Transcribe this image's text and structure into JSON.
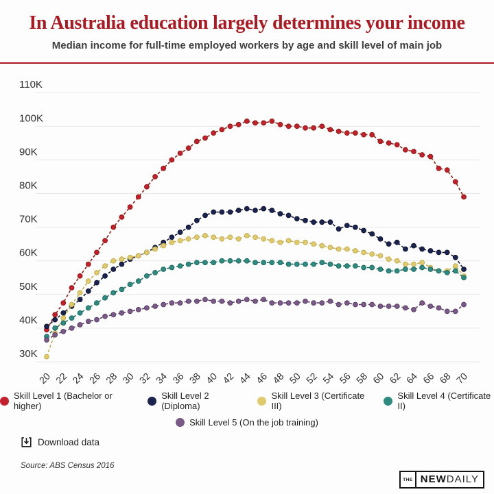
{
  "header": {
    "title": "In Australia education largely determines your income",
    "subtitle": "Median income for full-time employed workers by age and skill level of main job"
  },
  "chart_data": {
    "type": "line",
    "title": "In Australia education largely determines your income",
    "subtitle": "Median income for full-time employed workers by age and skill level of main job",
    "xlabel": "",
    "ylabel": "",
    "unit": "thousands of dollars per year (K)",
    "ylim": [
      30,
      110
    ],
    "grid": "horizontal",
    "legend_position": "bottom",
    "y_ticks": [
      "30K",
      "40K",
      "50K",
      "60K",
      "70K",
      "80K",
      "90K",
      "100K",
      "110K"
    ],
    "x_tick_labels": [
      "20",
      "22",
      "24",
      "26",
      "28",
      "30",
      "32",
      "34",
      "36",
      "38",
      "40",
      "42",
      "44",
      "46",
      "48",
      "50",
      "52",
      "54",
      "56",
      "58",
      "60",
      "62",
      "64",
      "66",
      "68",
      "70"
    ],
    "x": [
      20,
      21,
      22,
      23,
      24,
      25,
      26,
      27,
      28,
      29,
      30,
      31,
      32,
      33,
      34,
      35,
      36,
      37,
      38,
      39,
      40,
      41,
      42,
      43,
      44,
      45,
      46,
      47,
      48,
      49,
      50,
      51,
      52,
      53,
      54,
      55,
      56,
      57,
      58,
      59,
      60,
      61,
      62,
      63,
      64,
      65,
      66,
      67,
      68,
      69,
      70
    ],
    "series": [
      {
        "name": "Skill Level 1 (Bachelor or higher)",
        "color": "#c41f2d",
        "line_color": "#8f1d15",
        "values": [
          39.5,
          44,
          47.5,
          52,
          55.5,
          59,
          62.5,
          66,
          70,
          73,
          76,
          79,
          82,
          85,
          87.5,
          90,
          92,
          93.5,
          95.5,
          96.5,
          98,
          99,
          100,
          100.5,
          101.5,
          101,
          101,
          101.5,
          100.5,
          100,
          100,
          99.5,
          99.5,
          100,
          99,
          98.5,
          98,
          98,
          97.5,
          97.5,
          95.5,
          95,
          94.5,
          93,
          92.5,
          91.5,
          91,
          87.5,
          87,
          83.5,
          79
        ]
      },
      {
        "name": "Skill Level 2 (Diploma)",
        "color": "#1b2451",
        "line_color": "#10152e",
        "values": [
          40.5,
          42.5,
          44.5,
          46.5,
          48.5,
          51,
          53.5,
          55.5,
          57.5,
          59,
          60.5,
          61.5,
          62.5,
          64,
          65.5,
          67,
          68.5,
          70,
          72,
          73.5,
          74.5,
          74.5,
          74.5,
          75,
          75.5,
          75,
          75.5,
          75,
          74,
          73.5,
          72.5,
          72,
          71.5,
          71.5,
          71.5,
          69.5,
          70.5,
          70,
          69,
          68,
          66.5,
          65,
          65.5,
          63.5,
          64.5,
          63.5,
          63,
          62.5,
          62.5,
          61,
          57.5
        ]
      },
      {
        "name": "Skill Level 3 (Certificate III)",
        "color": "#dfca6d",
        "line_color": "#c4af52",
        "values": [
          31.5,
          38.5,
          43,
          47,
          50.5,
          54,
          56.5,
          58.5,
          60,
          60.5,
          61,
          61.5,
          62.5,
          63.5,
          64.5,
          65.5,
          66,
          66.5,
          67,
          67.5,
          67,
          66.5,
          67,
          66.5,
          67.5,
          67,
          66.5,
          66,
          65.5,
          66,
          65.5,
          65.5,
          65,
          64.5,
          64,
          63.5,
          63.5,
          63,
          62.5,
          62,
          61.5,
          60.5,
          60,
          59,
          59,
          59.5,
          58,
          57,
          57,
          58.5,
          55.5
        ]
      },
      {
        "name": "Skill Level 4 (Certificate II)",
        "color": "#2e8b80",
        "line_color": "#1f6a60",
        "values": [
          37.5,
          40,
          41.5,
          43,
          44.5,
          46,
          47.5,
          49,
          50.5,
          51.5,
          53,
          54,
          55.5,
          56.5,
          57.5,
          58,
          58.5,
          59,
          59.5,
          59.5,
          59.5,
          60,
          60,
          60,
          60,
          59.5,
          59.5,
          59.5,
          59.5,
          59,
          59,
          59,
          59,
          59.5,
          59,
          58.5,
          58.5,
          58.5,
          58,
          58,
          57.5,
          57,
          57,
          57.5,
          57.5,
          58,
          57.5,
          57,
          56.5,
          57,
          55
        ]
      },
      {
        "name": "Skill Level 5 (On the job training)",
        "color": "#7a5a87",
        "line_color": "#5a4067",
        "values": [
          36.5,
          38,
          39,
          40,
          41,
          42,
          42.5,
          43.5,
          44,
          44.5,
          45,
          45.5,
          46,
          46.5,
          47,
          47.5,
          47.5,
          48,
          48,
          48.5,
          48,
          48,
          47.5,
          48,
          48.5,
          48,
          48.5,
          47.5,
          47.5,
          47.5,
          47.5,
          48,
          47.5,
          47.5,
          48,
          47,
          47.5,
          47,
          47,
          47,
          46.5,
          46.5,
          46.5,
          46,
          45.5,
          47.5,
          46.5,
          46,
          45,
          45,
          47
        ]
      }
    ]
  },
  "footer": {
    "download_label": "Download data",
    "source": "Source: ABS Census 2016"
  },
  "logo": {
    "the": "THE",
    "new": "NEW",
    "daily": "DAILY"
  },
  "colors": {
    "accent_red": "#a8181f",
    "grid": "#e7e7e7",
    "axis_text": "#2f2f2f"
  }
}
